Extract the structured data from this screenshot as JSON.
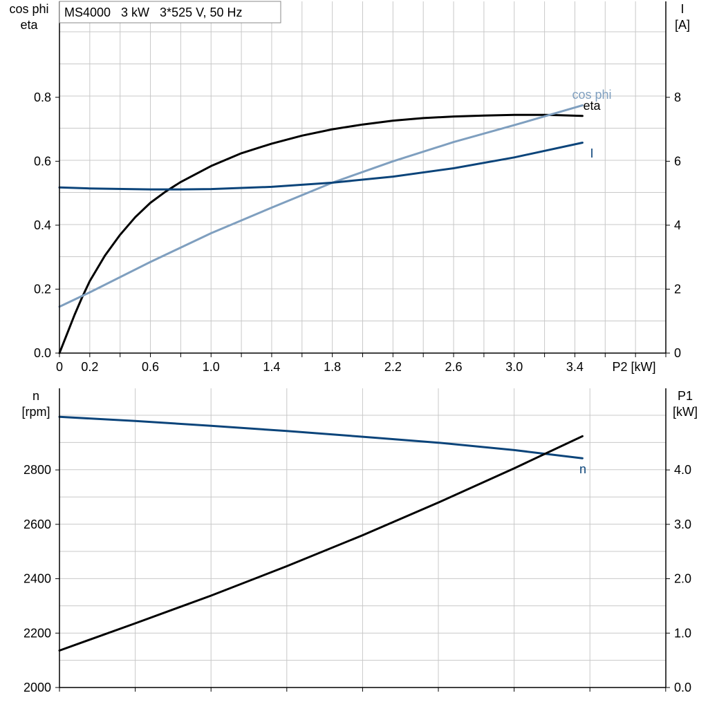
{
  "info_label": "MS4000   3 kW   3*525 V, 50 Hz",
  "colors": {
    "eta": "#000000",
    "cos_phi": "#7f9fbf",
    "current": "#0b447a",
    "speed": "#0b447a",
    "p1": "#000000"
  },
  "chart_data": [
    {
      "type": "line",
      "x_label": "P2 [kW]",
      "x_ticks": [
        "0",
        "0.2",
        "0.6",
        "1.0",
        "1.4",
        "1.8",
        "2.2",
        "2.6",
        "3.0",
        "3.4"
      ],
      "x_tick_values": [
        0,
        0.2,
        0.6,
        1.0,
        1.4,
        1.8,
        2.2,
        2.6,
        3.0,
        3.4
      ],
      "xlim": [
        0,
        4.0
      ],
      "left_axis": {
        "label_lines": [
          "cos phi",
          "eta"
        ],
        "ticks": [
          "0.0",
          "0.2",
          "0.4",
          "0.6",
          "0.8"
        ],
        "tick_values": [
          0.0,
          0.2,
          0.4,
          0.6,
          0.8
        ],
        "ylim": [
          0,
          1.1
        ]
      },
      "right_axis": {
        "label_lines": [
          "I",
          "[A]"
        ],
        "ticks": [
          "0",
          "2",
          "4",
          "6",
          "8"
        ],
        "tick_values": [
          0,
          2,
          4,
          6,
          8
        ],
        "ylim": [
          0,
          11
        ]
      },
      "grid": true,
      "series": [
        {
          "name": "eta",
          "axis": "left",
          "x": [
            0,
            0.05,
            0.1,
            0.15,
            0.2,
            0.3,
            0.4,
            0.5,
            0.6,
            0.7,
            0.8,
            1.0,
            1.2,
            1.4,
            1.6,
            1.8,
            2.0,
            2.2,
            2.4,
            2.6,
            2.8,
            3.0,
            3.2,
            3.3,
            3.45
          ],
          "y": [
            0.0,
            0.06,
            0.12,
            0.175,
            0.225,
            0.305,
            0.37,
            0.425,
            0.47,
            0.505,
            0.535,
            0.585,
            0.625,
            0.655,
            0.68,
            0.7,
            0.715,
            0.727,
            0.735,
            0.74,
            0.743,
            0.745,
            0.745,
            0.744,
            0.742
          ]
        },
        {
          "name": "cos phi",
          "axis": "left",
          "x": [
            0,
            0.2,
            0.6,
            1.0,
            1.4,
            1.8,
            2.2,
            2.6,
            3.0,
            3.45
          ],
          "y": [
            0.145,
            0.19,
            0.285,
            0.375,
            0.455,
            0.533,
            0.6,
            0.66,
            0.713,
            0.775
          ]
        },
        {
          "name": "I",
          "axis": "right",
          "x": [
            0,
            0.2,
            0.6,
            0.8,
            1.0,
            1.4,
            1.8,
            2.2,
            2.6,
            3.0,
            3.45
          ],
          "y": [
            5.18,
            5.15,
            5.12,
            5.12,
            5.13,
            5.2,
            5.33,
            5.52,
            5.78,
            6.12,
            6.58
          ]
        }
      ]
    },
    {
      "type": "line",
      "x_label": "",
      "xlim": [
        0,
        4.0
      ],
      "left_axis": {
        "label_lines": [
          "n",
          "[rpm]"
        ],
        "ticks": [
          "2000",
          "2200",
          "2400",
          "2600",
          "2800"
        ],
        "tick_values": [
          2000,
          2200,
          2400,
          2600,
          2800
        ],
        "ylim": [
          2000,
          3100
        ]
      },
      "right_axis": {
        "label_lines": [
          "P1",
          "[kW]"
        ],
        "ticks": [
          "0.0",
          "1.0",
          "2.0",
          "3.0",
          "4.0"
        ],
        "tick_values": [
          0,
          1,
          2,
          3,
          4
        ],
        "ylim": [
          0,
          5.5
        ]
      },
      "grid": true,
      "series": [
        {
          "name": "n",
          "axis": "left",
          "x": [
            0,
            0.5,
            1.0,
            1.5,
            2.0,
            2.5,
            3.0,
            3.45
          ],
          "y": [
            2995,
            2980,
            2962,
            2943,
            2922,
            2900,
            2873,
            2843
          ]
        },
        {
          "name": "",
          "axis": "right",
          "x": [
            0,
            0.5,
            1.0,
            1.5,
            2.0,
            2.5,
            3.0,
            3.45
          ],
          "y": [
            0.68,
            1.18,
            1.69,
            2.23,
            2.8,
            3.4,
            4.03,
            4.62
          ]
        }
      ]
    }
  ],
  "curve_labels": {
    "eta": "eta",
    "cos_phi": "cos phi",
    "current": "I",
    "speed": "n"
  }
}
